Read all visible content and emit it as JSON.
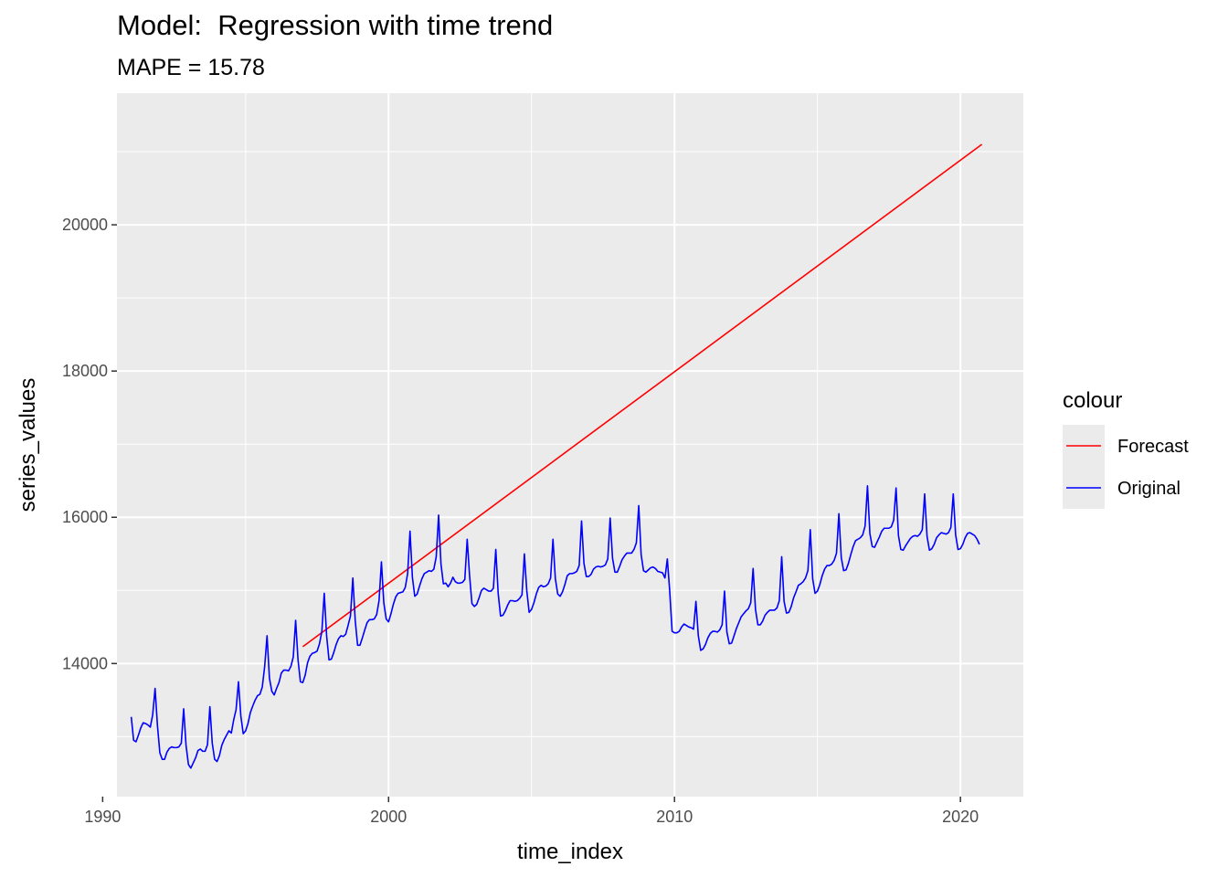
{
  "chart_data": {
    "type": "line",
    "title": "Model:  Regression with time trend",
    "subtitle": "MAPE = 15.78",
    "xlabel": "time_index",
    "ylabel": "series_values",
    "xlim": [
      1990.5,
      2022.2
    ],
    "ylim": [
      12180,
      21800
    ],
    "x_ticks": [
      1990,
      2000,
      2010,
      2020
    ],
    "y_ticks": [
      14000,
      16000,
      18000,
      20000
    ],
    "grid": true,
    "legend": {
      "title": "colour",
      "position": "right"
    },
    "series": [
      {
        "name": "Forecast",
        "color": "#ff0000",
        "x": [
          1997.0,
          2020.75
        ],
        "y": [
          14230,
          21100
        ]
      },
      {
        "name": "Original",
        "color": "#0000ff",
        "x_start": 1991.0,
        "x_step": 0.08333,
        "y": [
          13270,
          12950,
          12930,
          13020,
          13120,
          13190,
          13180,
          13160,
          13130,
          13300,
          13660,
          13150,
          12780,
          12690,
          12690,
          12790,
          12840,
          12860,
          12850,
          12850,
          12860,
          12910,
          13380,
          12880,
          12620,
          12570,
          12640,
          12710,
          12810,
          12830,
          12800,
          12800,
          12890,
          13410,
          12910,
          12690,
          12660,
          12740,
          12880,
          12960,
          13020,
          13080,
          13050,
          13230,
          13370,
          13750,
          13280,
          13040,
          13080,
          13180,
          13330,
          13420,
          13500,
          13560,
          13580,
          13680,
          13960,
          14380,
          13800,
          13620,
          13570,
          13660,
          13740,
          13870,
          13910,
          13910,
          13900,
          13960,
          14090,
          14590,
          14050,
          13750,
          13740,
          13840,
          14010,
          14100,
          14140,
          14150,
          14170,
          14270,
          14440,
          14960,
          14380,
          14050,
          14060,
          14150,
          14260,
          14340,
          14380,
          14370,
          14400,
          14520,
          14650,
          15170,
          14590,
          14250,
          14250,
          14350,
          14460,
          14560,
          14600,
          14600,
          14610,
          14670,
          14860,
          15390,
          14830,
          14610,
          14570,
          14680,
          14810,
          14910,
          14960,
          14970,
          14980,
          15040,
          15230,
          15810,
          15180,
          14920,
          14950,
          15060,
          15160,
          15230,
          15250,
          15270,
          15260,
          15290,
          15460,
          16030,
          15360,
          15090,
          15100,
          15050,
          15100,
          15180,
          15120,
          15100,
          15100,
          15110,
          15150,
          15700,
          15200,
          14820,
          14780,
          14810,
          14900,
          15000,
          15030,
          15010,
          14990,
          14990,
          15030,
          15560,
          14960,
          14650,
          14660,
          14720,
          14800,
          14860,
          14860,
          14850,
          14860,
          14890,
          14940,
          15500,
          15000,
          14700,
          14740,
          14830,
          14950,
          15040,
          15070,
          15050,
          15060,
          15090,
          15170,
          15700,
          15160,
          14950,
          14920,
          14980,
          15080,
          15200,
          15230,
          15230,
          15240,
          15260,
          15340,
          15950,
          15370,
          15190,
          15190,
          15220,
          15290,
          15320,
          15330,
          15320,
          15330,
          15350,
          15430,
          15990,
          15440,
          15250,
          15250,
          15330,
          15420,
          15470,
          15510,
          15510,
          15510,
          15560,
          15650,
          16160,
          15490,
          15270,
          15250,
          15280,
          15310,
          15320,
          15300,
          15260,
          15250,
          15240,
          15170,
          15430,
          14990,
          14440,
          14420,
          14420,
          14440,
          14500,
          14540,
          14520,
          14500,
          14490,
          14470,
          14850,
          14380,
          14180,
          14200,
          14260,
          14350,
          14410,
          14440,
          14440,
          14430,
          14460,
          14530,
          14990,
          14430,
          14270,
          14280,
          14380,
          14480,
          14560,
          14640,
          14680,
          14720,
          14750,
          14830,
          15300,
          14740,
          14530,
          14530,
          14580,
          14660,
          14700,
          14730,
          14730,
          14730,
          14760,
          14860,
          15460,
          14850,
          14690,
          14700,
          14780,
          14900,
          14980,
          15070,
          15090,
          15120,
          15170,
          15270,
          15830,
          15160,
          14960,
          14990,
          15080,
          15200,
          15290,
          15340,
          15340,
          15360,
          15410,
          15510,
          16050,
          15450,
          15270,
          15280,
          15370,
          15490,
          15600,
          15680,
          15700,
          15720,
          15760,
          15880,
          16430,
          15780,
          15600,
          15590,
          15660,
          15730,
          15810,
          15850,
          15850,
          15850,
          15870,
          15960,
          16400,
          15750,
          15560,
          15550,
          15610,
          15660,
          15710,
          15740,
          15750,
          15740,
          15770,
          15830,
          16320,
          15740,
          15550,
          15570,
          15630,
          15720,
          15760,
          15790,
          15780,
          15770,
          15790,
          15860,
          16320,
          15760,
          15560,
          15570,
          15630,
          15720,
          15780,
          15790,
          15770,
          15750,
          15700,
          15630
        ]
      }
    ]
  }
}
